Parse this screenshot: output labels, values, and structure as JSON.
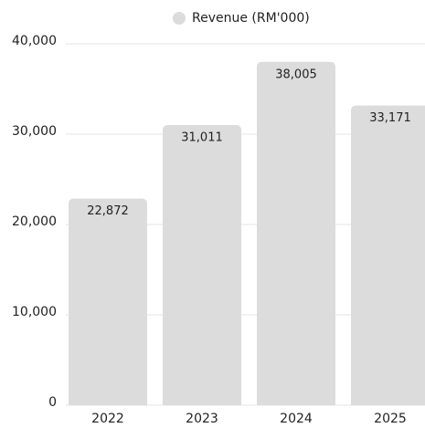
{
  "chart_data": {
    "type": "bar",
    "categories": [
      "2022",
      "2023",
      "2024",
      "2025"
    ],
    "series": [
      {
        "name": "Revenue (RM'000)",
        "color": "#dcdcdc",
        "values": [
          22872,
          31011,
          38005,
          33171
        ],
        "value_labels": [
          "22,872",
          "31,011",
          "38,005",
          "33,171"
        ]
      }
    ],
    "ylim": [
      0,
      40000
    ],
    "yticks": [
      0,
      {
        "value": 10000,
        "label": "10,000"
      },
      {
        "value": 20000,
        "label": "20,000"
      },
      {
        "value": 30000,
        "label": "30,000"
      },
      {
        "value": 40000,
        "label": "40,000"
      }
    ],
    "grid": true,
    "legend": "top"
  }
}
